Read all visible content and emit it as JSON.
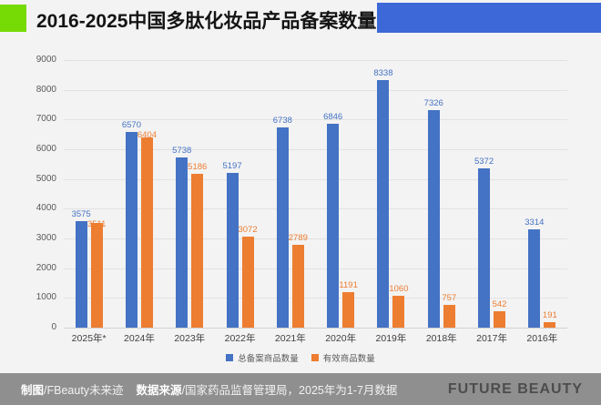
{
  "header": {
    "title": "2016-2025中国多肽化妆品产品备案数量",
    "accent_green_color": "#76db05",
    "accent_blue_color": "#3d68d8"
  },
  "chart_data": {
    "type": "bar",
    "title": "2016-2025中国多肽化妆品产品备案数量",
    "categories": [
      "2025年*",
      "2024年",
      "2023年",
      "2022年",
      "2021年",
      "2020年",
      "2019年",
      "2018年",
      "2017年",
      "2016年"
    ],
    "series": [
      {
        "name": "总备案商品数量",
        "color": "#4472c4",
        "values": [
          3575,
          6570,
          5738,
          5197,
          6738,
          6846,
          8338,
          7326,
          5372,
          3314
        ]
      },
      {
        "name": "有效商品数量",
        "color": "#ed7d31",
        "values": [
          3511,
          6404,
          5186,
          3072,
          2789,
          1191,
          1060,
          757,
          542,
          191
        ]
      }
    ],
    "xlabel": "",
    "ylabel": "",
    "ylim": [
      0,
      9000
    ],
    "ytick_interval": 1000,
    "grid": true,
    "legend_position": "bottom"
  },
  "footer": {
    "credit_label": "制图",
    "credit_value": "/FBeauty未来迹",
    "source_label": "数据来源",
    "source_value": "/国家药品监督管理局，2025年为1-7月数据",
    "brand": "FUTURE BEAUTY",
    "bar_color": "#8f8f8f"
  }
}
